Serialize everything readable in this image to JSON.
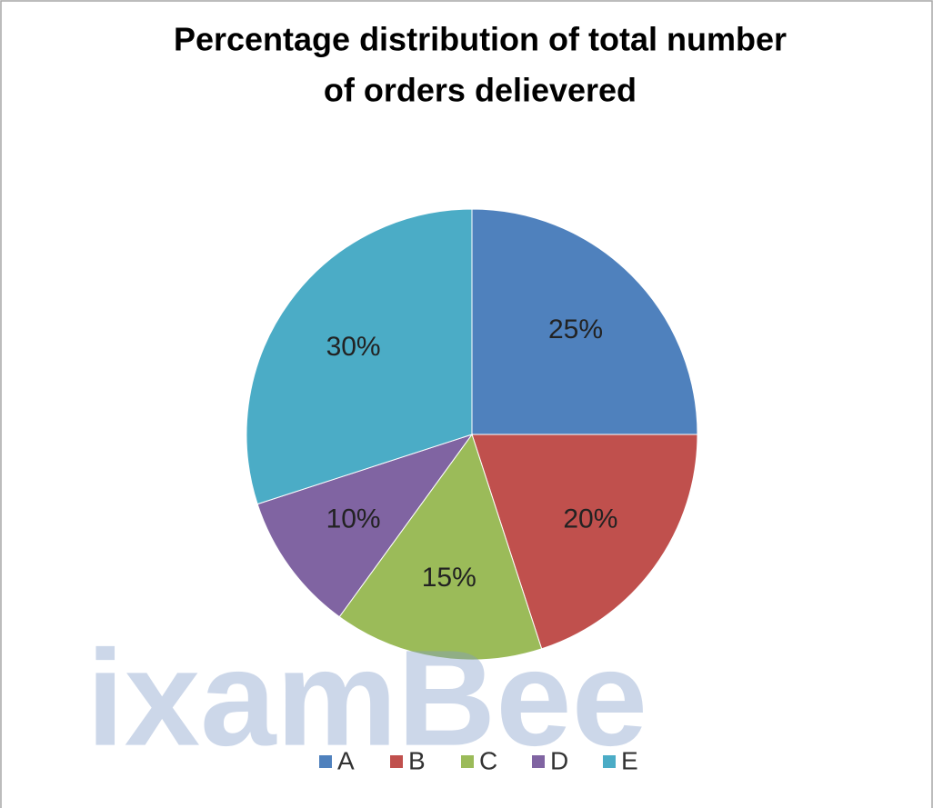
{
  "chart_data": {
    "type": "pie",
    "title": [
      "Percentage distribution of total number",
      "of orders delievered"
    ],
    "categories": [
      "A",
      "B",
      "C",
      "D",
      "E"
    ],
    "values": [
      25,
      20,
      15,
      10,
      30
    ],
    "value_labels": [
      "25%",
      "20%",
      "15%",
      "10%",
      "30%"
    ],
    "colors": [
      "#4f81bd",
      "#c0504d",
      "#9bbb59",
      "#8064a2",
      "#4bacc6"
    ],
    "legend": "bottom",
    "watermark": "ixamBee"
  }
}
